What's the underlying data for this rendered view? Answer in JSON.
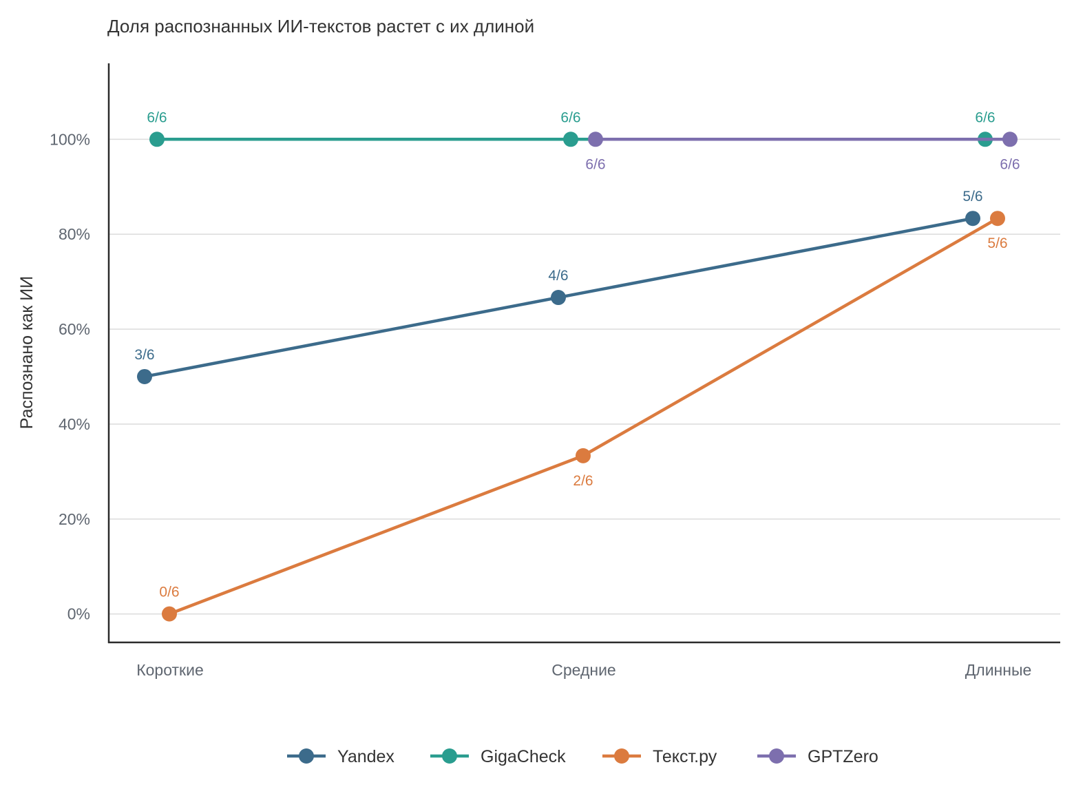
{
  "chart_data": {
    "type": "line",
    "title": "Доля распознанных ИИ-текстов растет с их длиной",
    "xlabel": "",
    "ylabel": "Распознано как ИИ",
    "categories": [
      "Короткие",
      "Средние",
      "Длинные"
    ],
    "ylim": [
      -0.06,
      1.16
    ],
    "yticks": [
      0,
      0.2,
      0.4,
      0.6,
      0.8,
      1.0
    ],
    "ytick_labels": [
      "0%",
      "20%",
      "40%",
      "60%",
      "80%",
      "100%"
    ],
    "grid": "horizontal",
    "legend_position": "bottom",
    "series": [
      {
        "name": "Yandex",
        "color": "#3c6b8b",
        "values": [
          0.5,
          0.6667,
          0.8333
        ],
        "labels": [
          "3/6",
          "4/6",
          "5/6"
        ],
        "label_position": [
          "above",
          "above",
          "above"
        ]
      },
      {
        "name": "GigaCheck",
        "color": "#2a9d8f",
        "values": [
          1.0,
          1.0,
          1.0
        ],
        "labels": [
          "6/6",
          "6/6",
          "6/6"
        ],
        "label_position": [
          "above",
          "above",
          "above"
        ]
      },
      {
        "name": "Текст.ру",
        "color": "#db7b3f",
        "values": [
          0.0,
          0.3333,
          0.8333
        ],
        "labels": [
          "0/6",
          "2/6",
          "5/6"
        ],
        "label_position": [
          "above",
          "below",
          "below"
        ]
      },
      {
        "name": "GPTZero",
        "color": "#7d6fae",
        "values": [
          null,
          1.0,
          1.0
        ],
        "labels": [
          "",
          "6/6",
          "6/6"
        ],
        "label_position": [
          "below",
          "below",
          "below"
        ]
      }
    ]
  }
}
